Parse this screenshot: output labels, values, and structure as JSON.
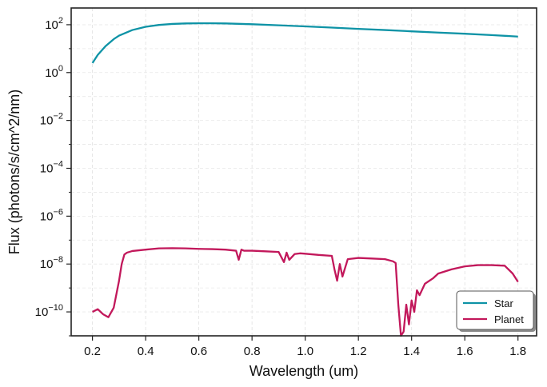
{
  "chart_data": {
    "type": "line",
    "xlabel": "Wavelength (um)",
    "ylabel": "Flux (photons/s/cm^2/nm)",
    "y_scale": "log",
    "xlim": [
      0.12,
      1.87
    ],
    "ylim": [
      1e-11,
      500
    ],
    "grid": true,
    "legend_position": "bottom-right",
    "x_ticks": [
      "0.2",
      "0.4",
      "0.6",
      "0.8",
      "1.0",
      "1.2",
      "1.4",
      "1.6",
      "1.8"
    ],
    "x_tick_values": [
      0.2,
      0.4,
      0.6,
      0.8,
      1.0,
      1.2,
      1.4,
      1.6,
      1.8
    ],
    "y_ticks": [
      {
        "base": "10",
        "exp": "2",
        "value": 100
      },
      {
        "base": "10",
        "exp": "0",
        "value": 1
      },
      {
        "base": "10",
        "exp": "−2",
        "value": 0.01
      },
      {
        "base": "10",
        "exp": "−4",
        "value": 0.0001
      },
      {
        "base": "10",
        "exp": "−6",
        "value": 1e-06
      },
      {
        "base": "10",
        "exp": "−8",
        "value": 1e-08
      },
      {
        "base": "10",
        "exp": "−10",
        "value": 1e-10
      }
    ],
    "series": [
      {
        "name": "Star",
        "color": "#0e93a6",
        "x": [
          0.2,
          0.22,
          0.25,
          0.28,
          0.3,
          0.35,
          0.4,
          0.45,
          0.5,
          0.55,
          0.6,
          0.65,
          0.7,
          0.8,
          0.9,
          1.0,
          1.1,
          1.2,
          1.3,
          1.4,
          1.5,
          1.6,
          1.7,
          1.8
        ],
        "y": [
          2.5,
          5.5,
          13,
          25,
          35,
          60,
          82,
          98,
          108,
          113,
          115,
          115,
          113,
          105,
          95,
          85,
          76,
          67,
          60,
          53,
          47,
          42,
          37,
          32
        ]
      },
      {
        "name": "Planet",
        "color": "#c2185b",
        "x": [
          0.2,
          0.22,
          0.24,
          0.26,
          0.28,
          0.3,
          0.31,
          0.32,
          0.33,
          0.35,
          0.4,
          0.45,
          0.5,
          0.55,
          0.6,
          0.65,
          0.7,
          0.74,
          0.75,
          0.76,
          0.77,
          0.8,
          0.85,
          0.9,
          0.92,
          0.93,
          0.94,
          0.96,
          0.98,
          1.0,
          1.05,
          1.1,
          1.11,
          1.12,
          1.13,
          1.14,
          1.16,
          1.2,
          1.25,
          1.3,
          1.33,
          1.34,
          1.35,
          1.36,
          1.37,
          1.38,
          1.39,
          1.4,
          1.41,
          1.42,
          1.43,
          1.45,
          1.48,
          1.5,
          1.55,
          1.6,
          1.65,
          1.7,
          1.75,
          1.78,
          1.8
        ],
        "y": [
          1e-10,
          1.3e-10,
          8e-11,
          6e-11,
          1.5e-10,
          2e-09,
          1e-08,
          2.5e-08,
          3e-08,
          3.5e-08,
          4e-08,
          4.5e-08,
          4.6e-08,
          4.5e-08,
          4.3e-08,
          4.2e-08,
          4e-08,
          3.6e-08,
          1.5e-08,
          4e-08,
          3.6e-08,
          3.6e-08,
          3.4e-08,
          3.2e-08,
          1.2e-08,
          3e-08,
          1.5e-08,
          2.6e-08,
          2.8e-08,
          2.7e-08,
          2.4e-08,
          2.2e-08,
          6e-09,
          2e-09,
          1e-08,
          3e-09,
          1.6e-08,
          1.8e-08,
          1.7e-08,
          1.6e-08,
          1.3e-08,
          1.1e-08,
          2e-10,
          1e-11,
          1.5e-11,
          2e-10,
          3e-11,
          3e-10,
          1e-10,
          8e-10,
          5e-10,
          1.5e-09,
          2.5e-09,
          4e-09,
          6e-09,
          8e-09,
          9e-09,
          9e-09,
          8.5e-09,
          4e-09,
          1.8e-09
        ]
      }
    ]
  }
}
